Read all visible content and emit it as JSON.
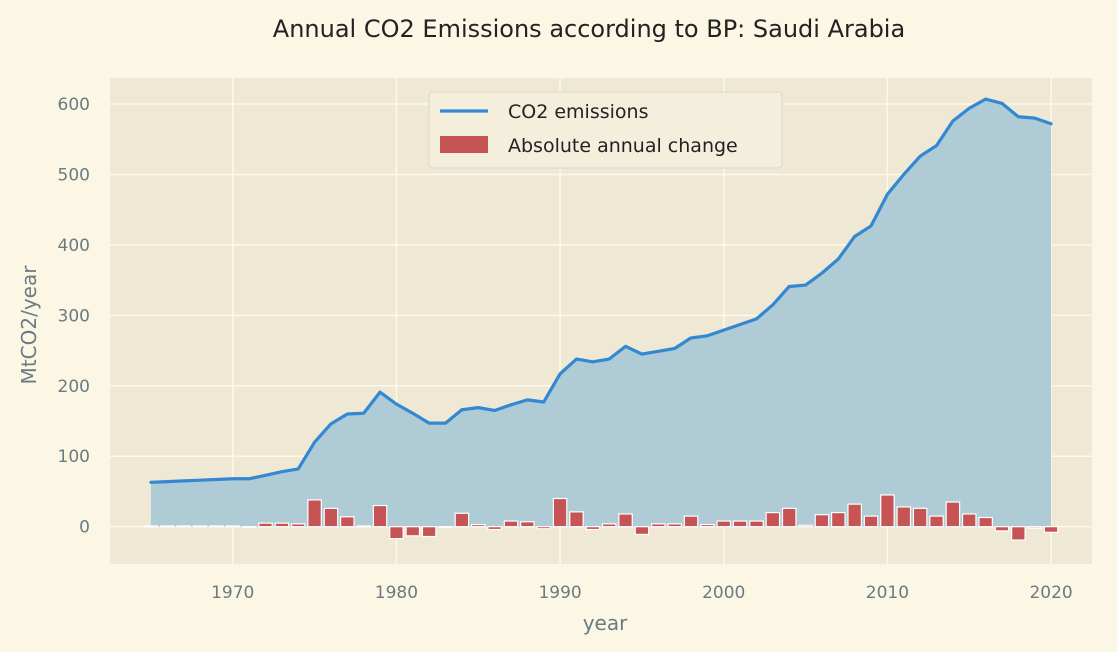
{
  "chart_data": {
    "type": "area",
    "title": "Annual CO2 Emissions according to BP: Saudi Arabia",
    "xlabel": "year",
    "ylabel": "MtCO2/year",
    "xlim": [
      1962.5,
      2022.5
    ],
    "ylim": [
      -53,
      637
    ],
    "xticks": [
      1970,
      1980,
      1990,
      2000,
      2010,
      2020
    ],
    "yticks": [
      0,
      100,
      200,
      300,
      400,
      500,
      600
    ],
    "grid": true,
    "legend_position": "top-center",
    "colors": {
      "line": "#3388d1",
      "area": "#aecbd6",
      "bar": "#c65454",
      "bar_edge": "#ffffff",
      "plot_bg": "#efe8d5",
      "grid": "#fdf8ea"
    },
    "legend": [
      "CO2 emissions",
      "Absolute annual change"
    ],
    "x": [
      1965,
      1966,
      1967,
      1968,
      1969,
      1970,
      1971,
      1972,
      1973,
      1974,
      1975,
      1976,
      1977,
      1978,
      1979,
      1980,
      1981,
      1982,
      1983,
      1984,
      1985,
      1986,
      1987,
      1988,
      1989,
      1990,
      1991,
      1992,
      1993,
      1994,
      1995,
      1996,
      1997,
      1998,
      1999,
      2000,
      2001,
      2002,
      2003,
      2004,
      2005,
      2006,
      2007,
      2008,
      2009,
      2010,
      2011,
      2012,
      2013,
      2014,
      2015,
      2016,
      2017,
      2018,
      2019,
      2020
    ],
    "series": [
      {
        "name": "CO2 emissions",
        "kind": "line+area",
        "values": [
          63,
          64,
          65,
          66,
          67,
          68,
          68,
          73,
          78,
          82,
          120,
          146,
          160,
          161,
          191,
          174,
          161,
          147,
          147,
          166,
          169,
          165,
          173,
          180,
          177,
          217,
          238,
          234,
          238,
          256,
          245,
          249,
          253,
          268,
          271,
          279,
          287,
          295,
          315,
          341,
          343,
          360,
          380,
          412,
          427,
          472,
          500,
          526,
          541,
          576,
          594,
          607,
          601,
          582,
          580,
          572
        ]
      },
      {
        "name": "Absolute annual change",
        "kind": "bar",
        "values": [
          1,
          1,
          1,
          1,
          1,
          1,
          0,
          5,
          5,
          4,
          38,
          26,
          14,
          1,
          30,
          -17,
          -13,
          -14,
          0,
          19,
          3,
          -4,
          8,
          7,
          -3,
          40,
          21,
          -4,
          4,
          18,
          -11,
          4,
          4,
          15,
          3,
          8,
          8,
          8,
          20,
          26,
          2,
          17,
          20,
          32,
          15,
          45,
          28,
          26,
          15,
          35,
          18,
          13,
          -6,
          -19,
          -2,
          -8
        ]
      }
    ]
  }
}
